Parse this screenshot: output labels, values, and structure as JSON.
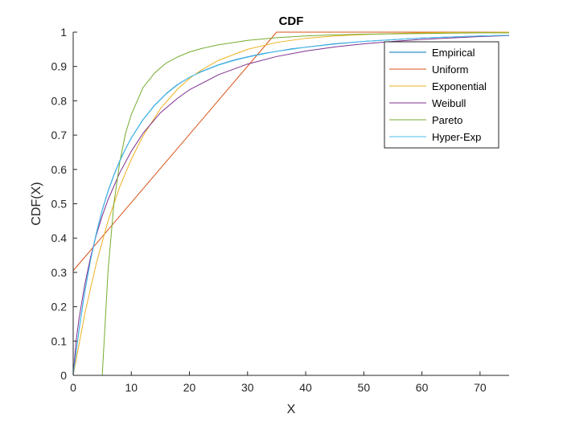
{
  "chart_data": {
    "type": "line",
    "title": "CDF",
    "xlabel": "X",
    "ylabel": "CDF(X)",
    "xlim": [
      0,
      75
    ],
    "ylim": [
      0,
      1
    ],
    "xticks": [
      0,
      10,
      20,
      30,
      40,
      50,
      60,
      70
    ],
    "yticks": [
      0,
      0.1,
      0.2,
      0.3,
      0.4,
      0.5,
      0.6,
      0.7,
      0.8,
      0.9,
      1
    ],
    "grid": false,
    "legend_position": "top-right",
    "series": [
      {
        "name": "Empirical",
        "color": "#0072BD",
        "x": [
          0,
          1,
          2,
          3,
          4,
          5,
          6,
          7,
          8,
          9,
          10,
          12,
          14,
          16,
          18,
          20,
          22,
          25,
          28,
          30,
          32.5,
          35,
          37.5,
          40,
          45,
          50,
          55,
          60,
          65,
          70,
          75
        ],
        "y": [
          0,
          0.132,
          0.245,
          0.338,
          0.416,
          0.482,
          0.537,
          0.584,
          0.625,
          0.66,
          0.692,
          0.745,
          0.787,
          0.821,
          0.848,
          0.868,
          0.885,
          0.905,
          0.92,
          0.928,
          0.937,
          0.944,
          0.951,
          0.956,
          0.966,
          0.973,
          0.978,
          0.983,
          0.986,
          0.989,
          0.991
        ]
      },
      {
        "name": "Uniform",
        "color": "#D95319",
        "x": [
          0,
          35,
          75
        ],
        "y": [
          0.305,
          1,
          1
        ]
      },
      {
        "name": "Exponential",
        "color": "#EDB120",
        "x": [
          0,
          2,
          4,
          6,
          8,
          10,
          12,
          15,
          18,
          20,
          22,
          25,
          30,
          35,
          40,
          45,
          50,
          55,
          60,
          65,
          70,
          75
        ],
        "y": [
          0,
          0.18,
          0.328,
          0.45,
          0.549,
          0.63,
          0.697,
          0.777,
          0.835,
          0.865,
          0.889,
          0.918,
          0.95,
          0.97,
          0.982,
          0.989,
          0.993,
          0.996,
          0.998,
          0.999,
          0.999,
          1
        ]
      },
      {
        "name": "Weibull",
        "color": "#7E2F8E",
        "x": [
          0,
          0.5,
          1,
          2,
          3,
          4,
          5,
          6,
          8,
          10,
          12,
          15,
          18,
          20,
          25,
          30,
          35,
          40,
          45,
          50,
          55,
          60,
          65,
          70,
          75
        ],
        "y": [
          0,
          0.1,
          0.165,
          0.265,
          0.345,
          0.41,
          0.465,
          0.512,
          0.59,
          0.653,
          0.705,
          0.765,
          0.808,
          0.832,
          0.876,
          0.907,
          0.929,
          0.945,
          0.957,
          0.966,
          0.973,
          0.979,
          0.983,
          0.987,
          0.99
        ]
      },
      {
        "name": "Pareto",
        "color": "#77AC30",
        "x": [
          0,
          5,
          6,
          7,
          8,
          9,
          10,
          12,
          14,
          16,
          18,
          20,
          22,
          25,
          30,
          35,
          40,
          45,
          50,
          55,
          60,
          65,
          70,
          75
        ],
        "y": [
          0,
          0,
          0.305,
          0.5,
          0.62,
          0.705,
          0.76,
          0.838,
          0.881,
          0.91,
          0.928,
          0.942,
          0.952,
          0.963,
          0.976,
          0.984,
          0.989,
          0.992,
          0.994,
          0.995,
          0.996,
          0.997,
          0.998,
          0.998
        ]
      },
      {
        "name": "Hyper-Exp",
        "color": "#4DBEEE",
        "x": [
          0,
          1,
          2,
          3,
          4,
          5,
          6,
          7,
          8,
          9,
          10,
          12,
          14,
          16,
          18,
          20,
          22,
          25,
          28,
          30,
          32.5,
          35,
          37.5,
          40,
          45,
          50,
          55,
          60,
          65,
          70,
          75
        ],
        "y": [
          0,
          0.13,
          0.242,
          0.336,
          0.414,
          0.48,
          0.535,
          0.582,
          0.623,
          0.659,
          0.691,
          0.744,
          0.786,
          0.82,
          0.847,
          0.868,
          0.884,
          0.904,
          0.919,
          0.927,
          0.936,
          0.944,
          0.95,
          0.956,
          0.965,
          0.973,
          0.978,
          0.983,
          0.986,
          0.989,
          0.991
        ]
      }
    ]
  }
}
